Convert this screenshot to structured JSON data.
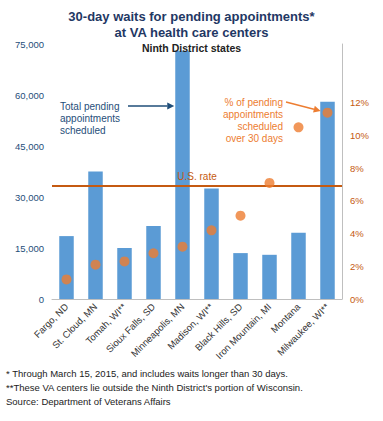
{
  "chart_data": {
    "type": "bar",
    "title": "30-day waits for pending appointments*\nat VA health care centers",
    "subtitle": "Ninth District states",
    "categories": [
      "Fargo, ND",
      "St. Cloud, MN",
      "Tomah, WI**",
      "Sioux Falls, SD",
      "Minneapolis, MN",
      "Madison, WI**",
      "Black Hills, SD",
      "Iron Mountain, MI",
      "Montana",
      "Milwaukee, WI**"
    ],
    "series": [
      {
        "name": "Total pending appointments scheduled",
        "type": "bar",
        "color": "#5b9bd5",
        "values": [
          18500,
          37500,
          15000,
          21500,
          73000,
          32500,
          13500,
          13000,
          19500,
          58000
        ]
      },
      {
        "name": "% of pending appointments scheduled over 30 days",
        "type": "scatter",
        "axis": "y2",
        "color": "#ed7d31",
        "marker": "circle",
        "values": [
          1.2,
          2.1,
          2.3,
          2.8,
          3.2,
          4.2,
          5.1,
          7.1,
          10.5,
          11.4
        ]
      }
    ],
    "ylim": [
      0,
      75000
    ],
    "yticks": [
      0,
      {
        "value": 15000,
        "label": "15,000"
      },
      {
        "value": 30000,
        "label": "30,000"
      },
      {
        "value": 45000,
        "label": "45,000"
      },
      {
        "value": 60000,
        "label": "60,000"
      },
      {
        "value": 75000,
        "label": "75,000"
      }
    ],
    "y2lim": [
      0,
      15.6
    ],
    "y2ticks": [
      {
        "value": 0,
        "label": "0%"
      },
      {
        "value": 2,
        "label": "2%"
      },
      {
        "value": 4,
        "label": "4%"
      },
      {
        "value": 6,
        "label": "6%"
      },
      {
        "value": 8,
        "label": "8%"
      },
      {
        "value": 10,
        "label": "10%"
      },
      {
        "value": 12,
        "label": "12%"
      }
    ],
    "reference_line": {
      "label": "U.S. rate",
      "value": 6.9,
      "axis": "y2",
      "color": "#c55a11"
    },
    "annotations": [
      {
        "text": "Total pending\nappointments\nscheduled",
        "series": 0,
        "target": "Minneapolis, MN",
        "color": "#1f4e79"
      },
      {
        "text": "% of pending\nappointments\nscheduled\nover 30 days",
        "series": 1,
        "target": "Milwaukee, WI**",
        "color": "#ed7d31"
      }
    ],
    "notes": [
      "* Through March 15, 2015, and includes waits longer than 30 days.",
      "**These VA centers lie outside the Ninth District's portion of Wisconsin.",
      "Source: Department of Veterans Affairs"
    ],
    "grid": false
  }
}
